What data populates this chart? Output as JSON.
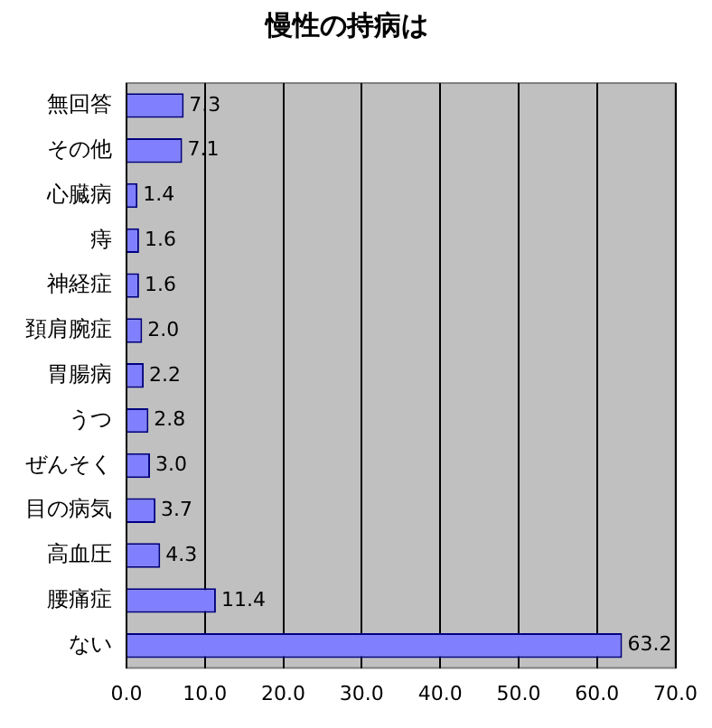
{
  "chart_data": {
    "type": "bar",
    "orientation": "horizontal",
    "title": "慢性の持病は",
    "categories": [
      "無回答",
      "その他",
      "心臓病",
      "痔",
      "神経症",
      "頚肩腕症",
      "胃腸病",
      "うつ",
      "ぜんそく",
      "目の病気",
      "高血圧",
      "腰痛症",
      "ない"
    ],
    "values": [
      7.3,
      7.1,
      1.4,
      1.6,
      1.6,
      2.0,
      2.2,
      2.8,
      3.0,
      3.7,
      4.3,
      11.4,
      63.2
    ],
    "value_labels": [
      "7.3",
      "7.1",
      "1.4",
      "1.6",
      "1.6",
      "2.0",
      "2.2",
      "2.8",
      "3.0",
      "3.7",
      "4.3",
      "11.4",
      "63.2"
    ],
    "color": "#8080ff",
    "xlim": [
      0,
      70
    ],
    "xticks": [
      {
        "value": 0,
        "label": "0.0"
      },
      {
        "value": 10,
        "label": "10.0"
      },
      {
        "value": 20,
        "label": "20.0"
      },
      {
        "value": 30,
        "label": "30.0"
      },
      {
        "value": 40,
        "label": "40.0"
      },
      {
        "value": 50,
        "label": "50.0"
      },
      {
        "value": 60,
        "label": "60.0"
      },
      {
        "value": 70,
        "label": "70.0"
      }
    ],
    "grid": "x",
    "legend": false
  }
}
